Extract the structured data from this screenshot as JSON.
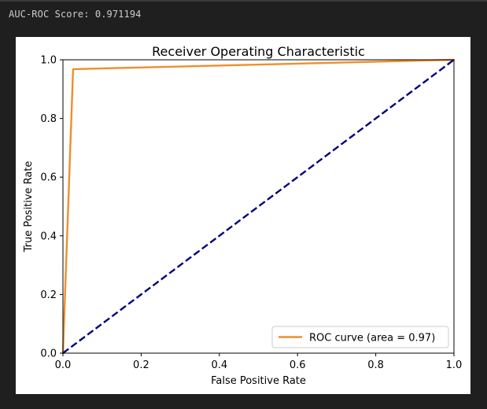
{
  "output": {
    "text": "AUC-ROC Score: 0.971194"
  },
  "chart_data": {
    "type": "line",
    "title": "Receiver Operating Characteristic",
    "xlabel": "False Positive Rate",
    "ylabel": "True Positive Rate",
    "xlim": [
      0,
      1
    ],
    "ylim": [
      0,
      1
    ],
    "xticks": [
      "0.0",
      "0.2",
      "0.4",
      "0.6",
      "0.8",
      "1.0"
    ],
    "yticks": [
      "0.0",
      "0.2",
      "0.4",
      "0.6",
      "0.8",
      "1.0"
    ],
    "grid": false,
    "legend_position": "lower-right",
    "series": [
      {
        "name": "ROC curve (area = 0.97)",
        "color": "#ee8f2b",
        "style": "solid",
        "x": [
          0.0,
          0.026,
          1.0
        ],
        "y": [
          0.0,
          0.968,
          1.0
        ]
      },
      {
        "color": "#00007f",
        "style": "dashed",
        "x": [
          0,
          1
        ],
        "y": [
          0,
          1
        ]
      }
    ]
  }
}
